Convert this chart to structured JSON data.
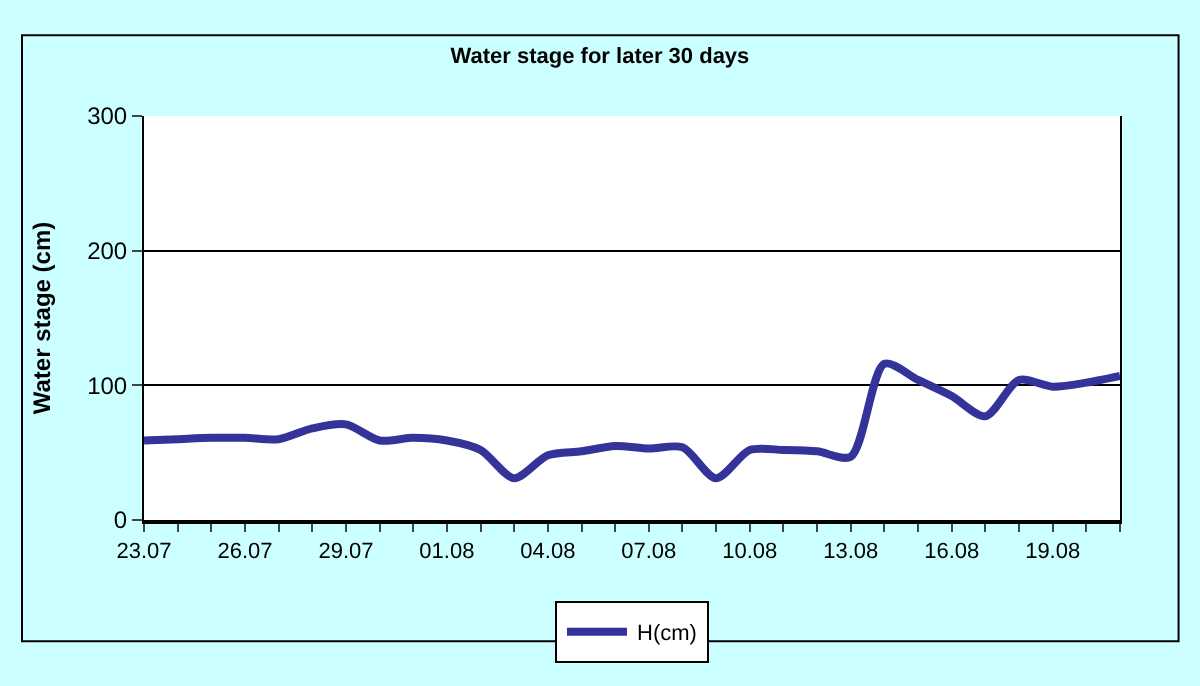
{
  "chart_data": {
    "type": "line",
    "title": "Water stage for later 30 days",
    "ylabel": "Water stage (cm)",
    "categories": [
      "23.07",
      null,
      null,
      "26.07",
      null,
      null,
      "29.07",
      null,
      null,
      "01.08",
      null,
      null,
      "04.08",
      null,
      null,
      "07.08",
      null,
      null,
      "10.08",
      null,
      null,
      "13.08",
      null,
      null,
      "16.08",
      null,
      null,
      "19.08",
      null,
      null
    ],
    "series": [
      {
        "name": "H(cm)",
        "color": "#333399",
        "values": [
          59,
          60,
          61,
          61,
          60,
          68,
          71,
          59,
          61,
          59,
          52,
          31,
          48,
          51,
          55,
          53,
          54,
          31,
          52,
          52,
          51,
          47,
          116,
          104,
          92,
          77,
          104,
          99,
          102,
          107
        ]
      }
    ],
    "ylim": [
      0,
      300
    ],
    "yticks": [
      0,
      100,
      200,
      300
    ],
    "grid": "y",
    "legend": "bottom",
    "marker": "none",
    "line_style": "solid"
  }
}
